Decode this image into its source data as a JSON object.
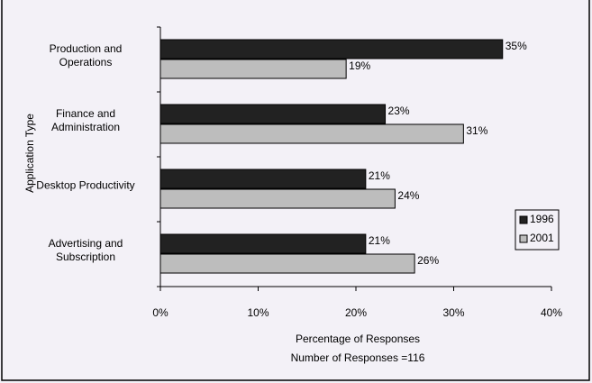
{
  "chart_data": {
    "type": "hbar",
    "x_label": "Percentage of Responses",
    "y_label": "Application Type",
    "annotation": "Number of Responses =116",
    "categories": [
      "Production and\nOperations",
      "Finance and\nAdministration",
      "Desktop Productivity",
      "Advertising and\nSubscription"
    ],
    "series": [
      {
        "name": "1996",
        "color": "#222222",
        "values": [
          35,
          23,
          21,
          21
        ],
        "value_labels": [
          "35%",
          "23%",
          "21%",
          "21%"
        ]
      },
      {
        "name": "2001",
        "color": "#bdbdbd",
        "values": [
          19,
          31,
          24,
          26
        ],
        "value_labels": [
          "19%",
          "31%",
          "24%",
          "26%"
        ]
      }
    ],
    "xlim": [
      0,
      40
    ],
    "xticks": [
      {
        "value": 0,
        "label": "0%"
      },
      {
        "value": 10,
        "label": "10%"
      },
      {
        "value": 20,
        "label": "20%"
      },
      {
        "value": 30,
        "label": "30%"
      },
      {
        "value": 40,
        "label": "40%"
      }
    ],
    "legend": "right"
  }
}
